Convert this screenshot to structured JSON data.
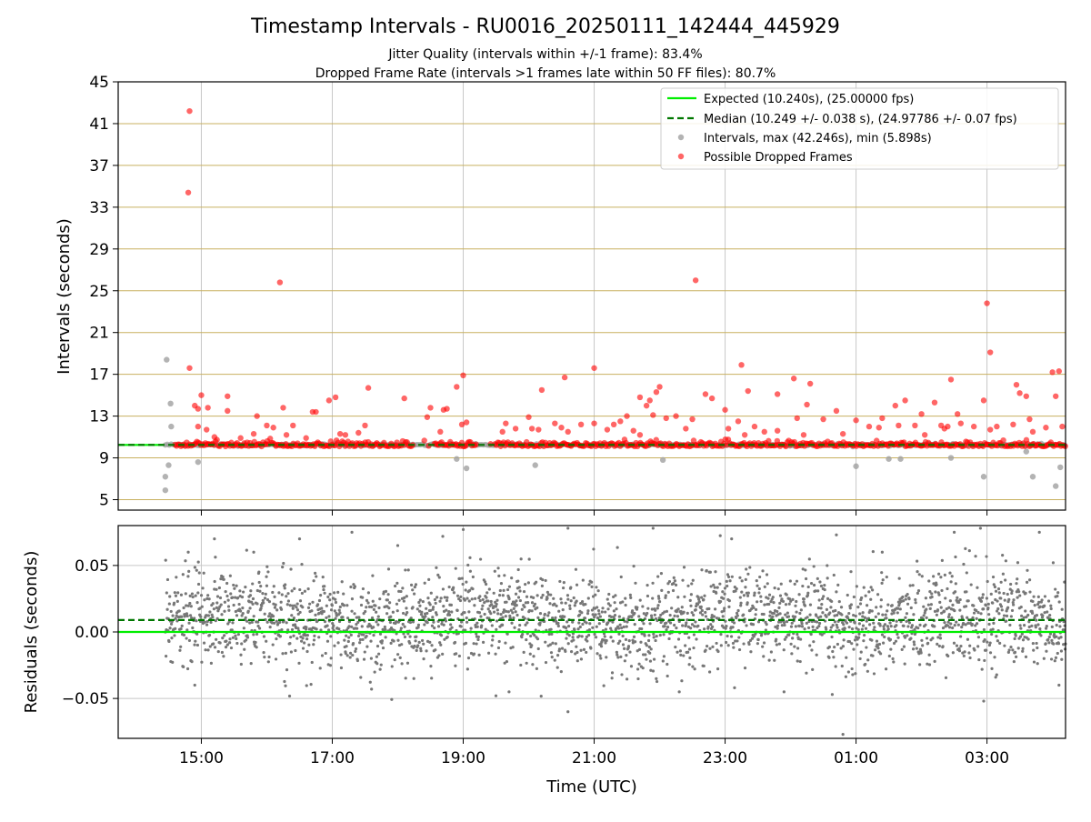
{
  "title": "Timestamp Intervals - RU0016_20250111_142444_445929",
  "subtitle_1": "Jitter Quality (intervals within +/-1 frame): 83.4%",
  "subtitle_2": "Dropped Frame Rate (intervals >1 frames late within 50 FF files): 80.7%",
  "colors": {
    "expected": "#00ee00",
    "median": "#007700",
    "intervals": "#a0a0a0",
    "dropped": "#ff0000",
    "residuals": "#777777",
    "grid": "#c8c8c8",
    "hgrid": "#c8b060"
  },
  "chart_data": [
    {
      "type": "scatter",
      "ylabel": "Intervals (seconds)",
      "xlabel": "",
      "x_units": "hours since 00:00 UTC 2025-01-11",
      "xlim": [
        13.73,
        28.2
      ],
      "ylim": [
        4,
        45
      ],
      "yticks": [
        5,
        9,
        13,
        17,
        21,
        25,
        29,
        33,
        37,
        41,
        45
      ],
      "grid": true,
      "legend_position": "top-right",
      "legend": [
        "Expected (10.240s), (25.00000 fps)",
        "Median (10.249 +/- 0.038 s), (24.97786 +/- 0.07 fps)",
        "Intervals, max (42.246s), min (5.898s)",
        "Possible Dropped Frames"
      ],
      "expected_value": 10.24,
      "median_value": 10.249,
      "interval_range": [
        14.45,
        28.2
      ],
      "interval_max": 42.246,
      "interval_min": 5.898,
      "interval_outliers": [
        [
          14.47,
          18.4
        ],
        [
          14.53,
          14.2
        ],
        [
          14.54,
          12.0
        ],
        [
          14.45,
          7.2
        ],
        [
          14.5,
          8.3
        ],
        [
          14.45,
          5.9
        ],
        [
          14.95,
          8.6
        ],
        [
          18.9,
          8.9
        ],
        [
          19.05,
          8.0
        ],
        [
          20.1,
          8.3
        ],
        [
          22.05,
          8.8
        ],
        [
          25.0,
          8.2
        ],
        [
          25.5,
          8.9
        ],
        [
          26.45,
          9.0
        ],
        [
          27.6,
          9.6
        ],
        [
          27.7,
          7.2
        ],
        [
          28.05,
          6.3
        ],
        [
          28.12,
          8.1
        ],
        [
          25.68,
          8.9
        ],
        [
          26.95,
          7.2
        ]
      ],
      "dropped_frames": [
        [
          14.82,
          42.2
        ],
        [
          14.8,
          34.4
        ],
        [
          14.82,
          17.6
        ],
        [
          14.9,
          14.0
        ],
        [
          15.0,
          15.0
        ],
        [
          14.95,
          13.7
        ],
        [
          15.1,
          13.8
        ],
        [
          14.95,
          12.0
        ],
        [
          15.08,
          11.7
        ],
        [
          15.2,
          11.0
        ],
        [
          15.4,
          14.9
        ],
        [
          15.4,
          13.5
        ],
        [
          15.6,
          10.9
        ],
        [
          15.8,
          11.3
        ],
        [
          15.85,
          13.0
        ],
        [
          16.0,
          12.1
        ],
        [
          16.1,
          11.9
        ],
        [
          16.2,
          25.8
        ],
        [
          16.25,
          13.8
        ],
        [
          16.3,
          11.2
        ],
        [
          16.4,
          12.1
        ],
        [
          16.6,
          10.9
        ],
        [
          16.7,
          13.4
        ],
        [
          16.75,
          13.4
        ],
        [
          16.95,
          14.5
        ],
        [
          17.05,
          14.8
        ],
        [
          17.12,
          11.3
        ],
        [
          17.2,
          11.2
        ],
        [
          17.4,
          11.4
        ],
        [
          17.5,
          12.1
        ],
        [
          17.55,
          15.7
        ],
        [
          18.1,
          14.7
        ],
        [
          18.45,
          12.9
        ],
        [
          18.5,
          13.8
        ],
        [
          18.65,
          11.5
        ],
        [
          18.7,
          13.6
        ],
        [
          18.75,
          13.7
        ],
        [
          18.9,
          15.8
        ],
        [
          18.98,
          12.2
        ],
        [
          19.0,
          16.9
        ],
        [
          19.05,
          12.4
        ],
        [
          19.6,
          11.5
        ],
        [
          19.65,
          12.3
        ],
        [
          19.8,
          11.8
        ],
        [
          20.0,
          12.9
        ],
        [
          20.05,
          11.8
        ],
        [
          20.15,
          11.7
        ],
        [
          20.2,
          15.5
        ],
        [
          20.4,
          12.3
        ],
        [
          20.5,
          11.9
        ],
        [
          20.55,
          16.7
        ],
        [
          20.6,
          11.5
        ],
        [
          20.8,
          12.2
        ],
        [
          21.0,
          12.3
        ],
        [
          21.0,
          17.6
        ],
        [
          21.2,
          11.7
        ],
        [
          21.3,
          12.2
        ],
        [
          21.4,
          12.5
        ],
        [
          21.5,
          13.0
        ],
        [
          21.6,
          11.6
        ],
        [
          21.7,
          11.2
        ],
        [
          21.7,
          14.8
        ],
        [
          21.8,
          14.0
        ],
        [
          21.85,
          14.5
        ],
        [
          21.9,
          13.1
        ],
        [
          21.95,
          15.3
        ],
        [
          22.0,
          15.8
        ],
        [
          22.1,
          12.8
        ],
        [
          22.25,
          13.0
        ],
        [
          22.4,
          11.8
        ],
        [
          22.5,
          12.7
        ],
        [
          22.55,
          26.0
        ],
        [
          22.7,
          15.1
        ],
        [
          22.8,
          14.7
        ],
        [
          23.0,
          13.6
        ],
        [
          23.05,
          11.8
        ],
        [
          23.2,
          12.5
        ],
        [
          23.25,
          17.9
        ],
        [
          23.3,
          11.2
        ],
        [
          23.35,
          15.4
        ],
        [
          23.45,
          12.0
        ],
        [
          23.6,
          11.5
        ],
        [
          23.8,
          11.6
        ],
        [
          23.8,
          15.1
        ],
        [
          24.05,
          16.6
        ],
        [
          24.1,
          12.8
        ],
        [
          24.2,
          11.2
        ],
        [
          24.25,
          14.1
        ],
        [
          24.3,
          16.1
        ],
        [
          24.5,
          12.7
        ],
        [
          24.7,
          13.5
        ],
        [
          24.8,
          11.3
        ],
        [
          25.0,
          12.6
        ],
        [
          25.2,
          12.0
        ],
        [
          25.35,
          11.9
        ],
        [
          25.4,
          12.8
        ],
        [
          25.6,
          14.0
        ],
        [
          25.65,
          12.1
        ],
        [
          25.75,
          14.5
        ],
        [
          25.9,
          12.1
        ],
        [
          26.0,
          13.2
        ],
        [
          26.05,
          11.2
        ],
        [
          26.2,
          14.3
        ],
        [
          26.3,
          12.1
        ],
        [
          26.35,
          11.8
        ],
        [
          26.4,
          12.0
        ],
        [
          26.45,
          16.5
        ],
        [
          26.55,
          13.2
        ],
        [
          26.6,
          12.3
        ],
        [
          26.8,
          12.0
        ],
        [
          26.95,
          14.5
        ],
        [
          27.0,
          23.8
        ],
        [
          27.05,
          11.7
        ],
        [
          27.05,
          19.1
        ],
        [
          27.15,
          12.0
        ],
        [
          27.4,
          12.2
        ],
        [
          27.45,
          16.0
        ],
        [
          27.5,
          15.2
        ],
        [
          27.6,
          14.9
        ],
        [
          27.65,
          12.7
        ],
        [
          27.7,
          11.5
        ],
        [
          27.9,
          11.9
        ],
        [
          28.0,
          17.2
        ],
        [
          28.05,
          14.9
        ],
        [
          28.1,
          17.3
        ],
        [
          28.15,
          12.0
        ]
      ],
      "dropped_band_range": [
        14.6,
        28.2
      ]
    },
    {
      "type": "scatter",
      "ylabel": "Residuals (seconds)",
      "xlabel": "Time (UTC)",
      "x_units": "hours since 00:00 UTC 2025-01-11",
      "xlim": [
        13.73,
        28.2
      ],
      "ylim": [
        -0.08,
        0.08
      ],
      "yticks": [
        0.05,
        0.0,
        -0.05
      ],
      "ytick_labels": [
        "0.05",
        "0.00",
        "−0.05"
      ],
      "xticks": [
        15,
        17,
        19,
        21,
        23,
        25,
        27
      ],
      "xtick_labels": [
        "15:00",
        "17:00",
        "19:00",
        "21:00",
        "23:00",
        "01:00",
        "03:00"
      ],
      "grid": true,
      "expected_value": 0.0,
      "median_value": 0.009,
      "residual_range": [
        14.45,
        28.2
      ],
      "residual_spread": 0.025,
      "residual_outliers": [
        [
          14.8,
          0.06
        ],
        [
          14.9,
          -0.04
        ],
        [
          15.2,
          0.07
        ],
        [
          15.8,
          0.06
        ],
        [
          16.5,
          0.07
        ],
        [
          17.3,
          0.075
        ],
        [
          17.6,
          -0.043
        ],
        [
          18.0,
          0.065
        ],
        [
          19.0,
          0.077
        ],
        [
          19.5,
          -0.048
        ],
        [
          19.7,
          -0.045
        ],
        [
          20.6,
          0.078
        ],
        [
          20.6,
          -0.06
        ],
        [
          21.9,
          0.078
        ],
        [
          22.3,
          -0.045
        ],
        [
          23.1,
          0.07
        ],
        [
          24.7,
          0.073
        ],
        [
          24.8,
          -0.077
        ],
        [
          25.4,
          0.06
        ],
        [
          26.5,
          0.075
        ],
        [
          26.9,
          0.078
        ],
        [
          26.95,
          -0.052
        ],
        [
          27.8,
          0.075
        ],
        [
          28.1,
          -0.04
        ],
        [
          23.9,
          -0.045
        ]
      ]
    }
  ]
}
